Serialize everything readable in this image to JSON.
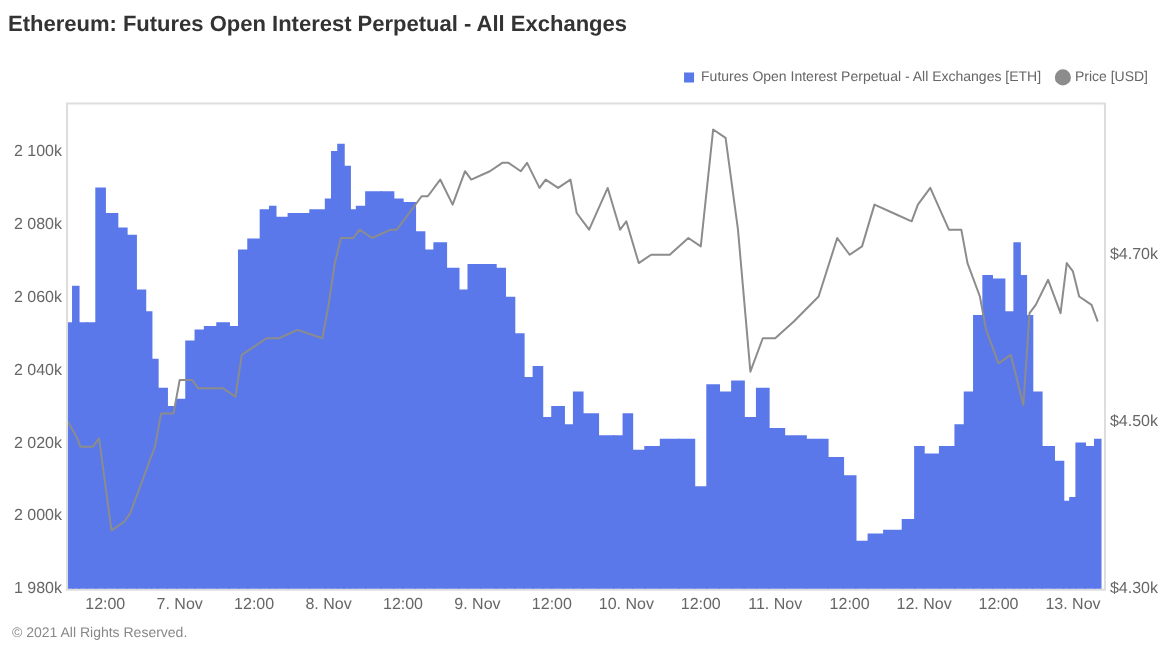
{
  "chart_data": {
    "type": "bar",
    "title": "Ethereum: Futures Open Interest Perpetual - All Exchanges",
    "x": [
      "2021-11-06T06:00",
      "2021-11-06T07:30",
      "2021-11-06T08:00",
      "2021-11-06T10:00",
      "2021-11-06T11:00",
      "2021-11-06T13:00",
      "2021-11-06T15:00",
      "2021-11-06T16:00",
      "2021-11-06T18:00",
      "2021-11-06T19:00",
      "2021-11-06T20:00",
      "2021-11-06T21:00",
      "2021-11-06T23:00",
      "2021-11-07T00:00",
      "2021-11-07T02:00",
      "2021-11-07T03:00",
      "2021-11-07T05:00",
      "2021-11-07T07:00",
      "2021-11-07T09:00",
      "2021-11-07T10:00",
      "2021-11-07T12:00",
      "2021-11-07T14:00",
      "2021-11-07T15:00",
      "2021-11-07T16:00",
      "2021-11-07T19:00",
      "2021-11-07T23:00",
      "2021-11-08T00:00",
      "2021-11-08T01:00",
      "2021-11-08T02:00",
      "2021-11-08T03:00",
      "2021-11-08T04:00",
      "2021-11-08T05:00",
      "2021-11-08T07:00",
      "2021-11-08T10:00",
      "2021-11-08T11:00",
      "2021-11-08T13:00",
      "2021-11-08T15:00",
      "2021-11-08T16:00",
      "2021-11-08T18:00",
      "2021-11-08T20:00",
      "2021-11-08T22:00",
      "2021-11-08T23:00",
      "2021-11-09T02:00",
      "2021-11-09T04:00",
      "2021-11-09T05:00",
      "2021-11-09T07:00",
      "2021-11-09T08:00",
      "2021-11-09T10:00",
      "2021-11-09T11:00",
      "2021-11-09T13:00",
      "2021-11-09T15:00",
      "2021-11-09T16:00",
      "2021-11-09T18:00",
      "2021-11-09T21:00",
      "2021-11-09T23:00",
      "2021-11-10T00:00",
      "2021-11-10T02:00",
      "2021-11-10T04:00",
      "2021-11-10T07:00",
      "2021-11-10T10:00",
      "2021-11-10T12:00",
      "2021-11-10T14:00",
      "2021-11-10T16:00",
      "2021-11-10T18:00",
      "2021-11-10T20:00",
      "2021-11-10T22:00",
      "2021-11-11T00:00",
      "2021-11-11T03:00",
      "2021-11-11T07:00",
      "2021-11-11T10:00",
      "2021-11-11T12:00",
      "2021-11-11T14:00",
      "2021-11-11T16:00",
      "2021-11-11T19:00",
      "2021-11-11T22:00",
      "2021-11-11T23:00",
      "2021-11-12T01:00",
      "2021-11-12T04:00",
      "2021-11-12T06:00",
      "2021-11-12T07:00",
      "2021-11-12T09:00",
      "2021-11-12T10:00",
      "2021-11-12T12:00",
      "2021-11-12T14:00",
      "2021-11-12T15:00",
      "2021-11-12T16:00",
      "2021-11-12T17:00",
      "2021-11-12T18:00",
      "2021-11-12T20:00",
      "2021-11-12T22:00",
      "2021-11-12T23:00",
      "2021-11-13T00:00",
      "2021-11-13T01:00",
      "2021-11-13T03:00",
      "2021-11-13T04:00"
    ],
    "series": [
      {
        "name": "Futures Open Interest Perpetual - All Exchanges [ETH]",
        "color": "#5a78ea",
        "values": [
          2053,
          2063,
          2053,
          2053,
          2090,
          2083,
          2079,
          2077,
          2062,
          2056,
          2043,
          2035,
          2030,
          2032,
          2048,
          2051,
          2052,
          2053,
          2052,
          2073,
          2076,
          2084,
          2085,
          2082,
          2083,
          2084,
          2087,
          2100,
          2102,
          2096,
          2084,
          2085,
          2089,
          2089,
          2087,
          2086,
          2078,
          2073,
          2075,
          2068,
          2062,
          2069,
          2069,
          2068,
          2060,
          2050,
          2038,
          2041,
          2027,
          2030,
          2025,
          2034,
          2028,
          2022,
          2022,
          2028,
          2018,
          2019,
          2021,
          2021,
          2008,
          2036,
          2034,
          2037,
          2027,
          2035,
          2024,
          2022,
          2021,
          2016,
          2011,
          1993,
          1995,
          1996,
          1999,
          2019,
          2017,
          2019,
          2025,
          2034,
          2055,
          2066,
          2065,
          2056,
          2075,
          2066,
          2055,
          2034,
          2019,
          2015,
          2004,
          2005,
          2020,
          2019,
          2021
        ]
      },
      {
        "name": "Price [USD]",
        "type": "line",
        "axis": "y2",
        "color": "#8c8c8c",
        "values": [
          4.5,
          4.48,
          4.47,
          4.47,
          4.48,
          4.37,
          4.38,
          4.39,
          4.43,
          4.45,
          4.47,
          4.51,
          4.51,
          4.55,
          4.55,
          4.54,
          4.54,
          4.54,
          4.53,
          4.58,
          4.59,
          4.6,
          4.6,
          4.6,
          4.61,
          4.6,
          4.64,
          4.69,
          4.72,
          4.72,
          4.72,
          4.73,
          4.72,
          4.73,
          4.73,
          4.75,
          4.77,
          4.77,
          4.79,
          4.76,
          4.8,
          4.79,
          4.8,
          4.81,
          4.81,
          4.8,
          4.81,
          4.78,
          4.79,
          4.78,
          4.79,
          4.75,
          4.73,
          4.78,
          4.73,
          4.74,
          4.69,
          4.7,
          4.7,
          4.72,
          4.71,
          4.85,
          4.84,
          4.73,
          4.56,
          4.6,
          4.6,
          4.62,
          4.65,
          4.72,
          4.7,
          4.71,
          4.76,
          4.75,
          4.74,
          4.76,
          4.78,
          4.73,
          4.73,
          4.69,
          4.65,
          4.61,
          4.57,
          4.58,
          4.55,
          4.52,
          4.63,
          4.64,
          4.67,
          4.63,
          4.69,
          4.68,
          4.65,
          4.64,
          4.62
        ]
      }
    ],
    "xlim": [
      "2021-11-06T06:00",
      "2021-11-13T05:00"
    ],
    "xticks": [
      {
        "value": "2021-11-06T12:00",
        "label": "12:00"
      },
      {
        "value": "2021-11-07T00:00",
        "label": "7. Nov"
      },
      {
        "value": "2021-11-07T12:00",
        "label": "12:00"
      },
      {
        "value": "2021-11-08T00:00",
        "label": "8. Nov"
      },
      {
        "value": "2021-11-08T12:00",
        "label": "12:00"
      },
      {
        "value": "2021-11-09T00:00",
        "label": "9. Nov"
      },
      {
        "value": "2021-11-09T12:00",
        "label": "12:00"
      },
      {
        "value": "2021-11-10T00:00",
        "label": "10. Nov"
      },
      {
        "value": "2021-11-10T12:00",
        "label": "12:00"
      },
      {
        "value": "2021-11-11T00:00",
        "label": "11. Nov"
      },
      {
        "value": "2021-11-11T12:00",
        "label": "12:00"
      },
      {
        "value": "2021-11-12T00:00",
        "label": "12. Nov"
      },
      {
        "value": "2021-11-12T12:00",
        "label": "12:00"
      },
      {
        "value": "2021-11-13T00:00",
        "label": "13. Nov"
      }
    ],
    "ylim": [
      1980,
      2113
    ],
    "yticks": [
      {
        "value": 1980,
        "label": "1 980k"
      },
      {
        "value": 2000,
        "label": "2 000k"
      },
      {
        "value": 2020,
        "label": "2 020k"
      },
      {
        "value": 2040,
        "label": "2 040k"
      },
      {
        "value": 2060,
        "label": "2 060k"
      },
      {
        "value": 2080,
        "label": "2 080k"
      },
      {
        "value": 2100,
        "label": "2 100k"
      }
    ],
    "y2lim": [
      4.3,
      4.88
    ],
    "y2ticks": [
      {
        "value": 4.3,
        "label": "$4.30k"
      },
      {
        "value": 4.5,
        "label": "$4.50k"
      },
      {
        "value": 4.7,
        "label": "$4.70k"
      }
    ],
    "annotations": [
      "© 2021 All Rights Reserved."
    ],
    "legend": "top right",
    "grid": false,
    "marker": "none"
  }
}
